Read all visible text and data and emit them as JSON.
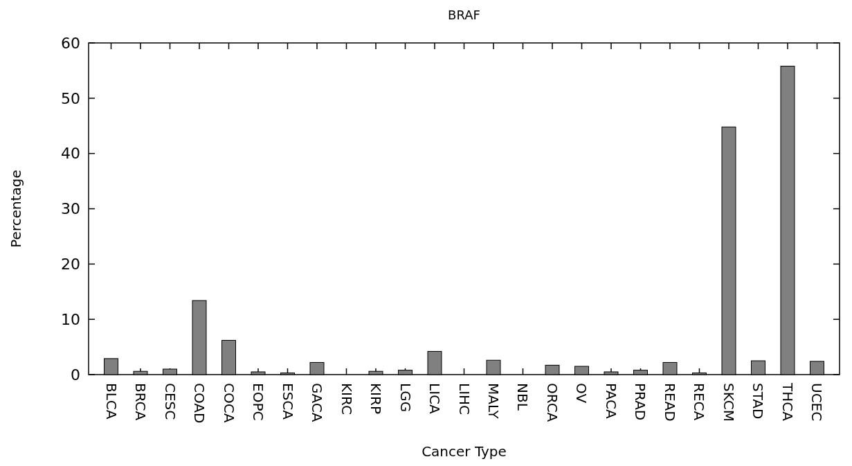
{
  "chart_data": {
    "type": "bar",
    "title": "BRAF",
    "xlabel": "Cancer Type",
    "ylabel": "Percentage",
    "categories": [
      "BLCA",
      "BRCA",
      "CESC",
      "COAD",
      "COCA",
      "EOPC",
      "ESCA",
      "GACA",
      "KIRC",
      "KIRP",
      "LGG",
      "LICA",
      "LIHC",
      "MALY",
      "NBL",
      "ORCA",
      "OV",
      "PACA",
      "PRAD",
      "READ",
      "RECA",
      "SKCM",
      "STAD",
      "THCA",
      "UCEC"
    ],
    "values": [
      2.9,
      0.6,
      1.0,
      13.4,
      6.2,
      0.5,
      0.3,
      2.2,
      0,
      0.6,
      0.8,
      4.2,
      0,
      2.6,
      0,
      1.7,
      1.5,
      0.5,
      0.8,
      2.2,
      0.3,
      44.8,
      2.5,
      55.8,
      2.4
    ],
    "color": "#808080",
    "ylim": [
      0,
      60
    ],
    "yticks": [
      0,
      10,
      20,
      30,
      40,
      50,
      60
    ],
    "grid": false
  }
}
